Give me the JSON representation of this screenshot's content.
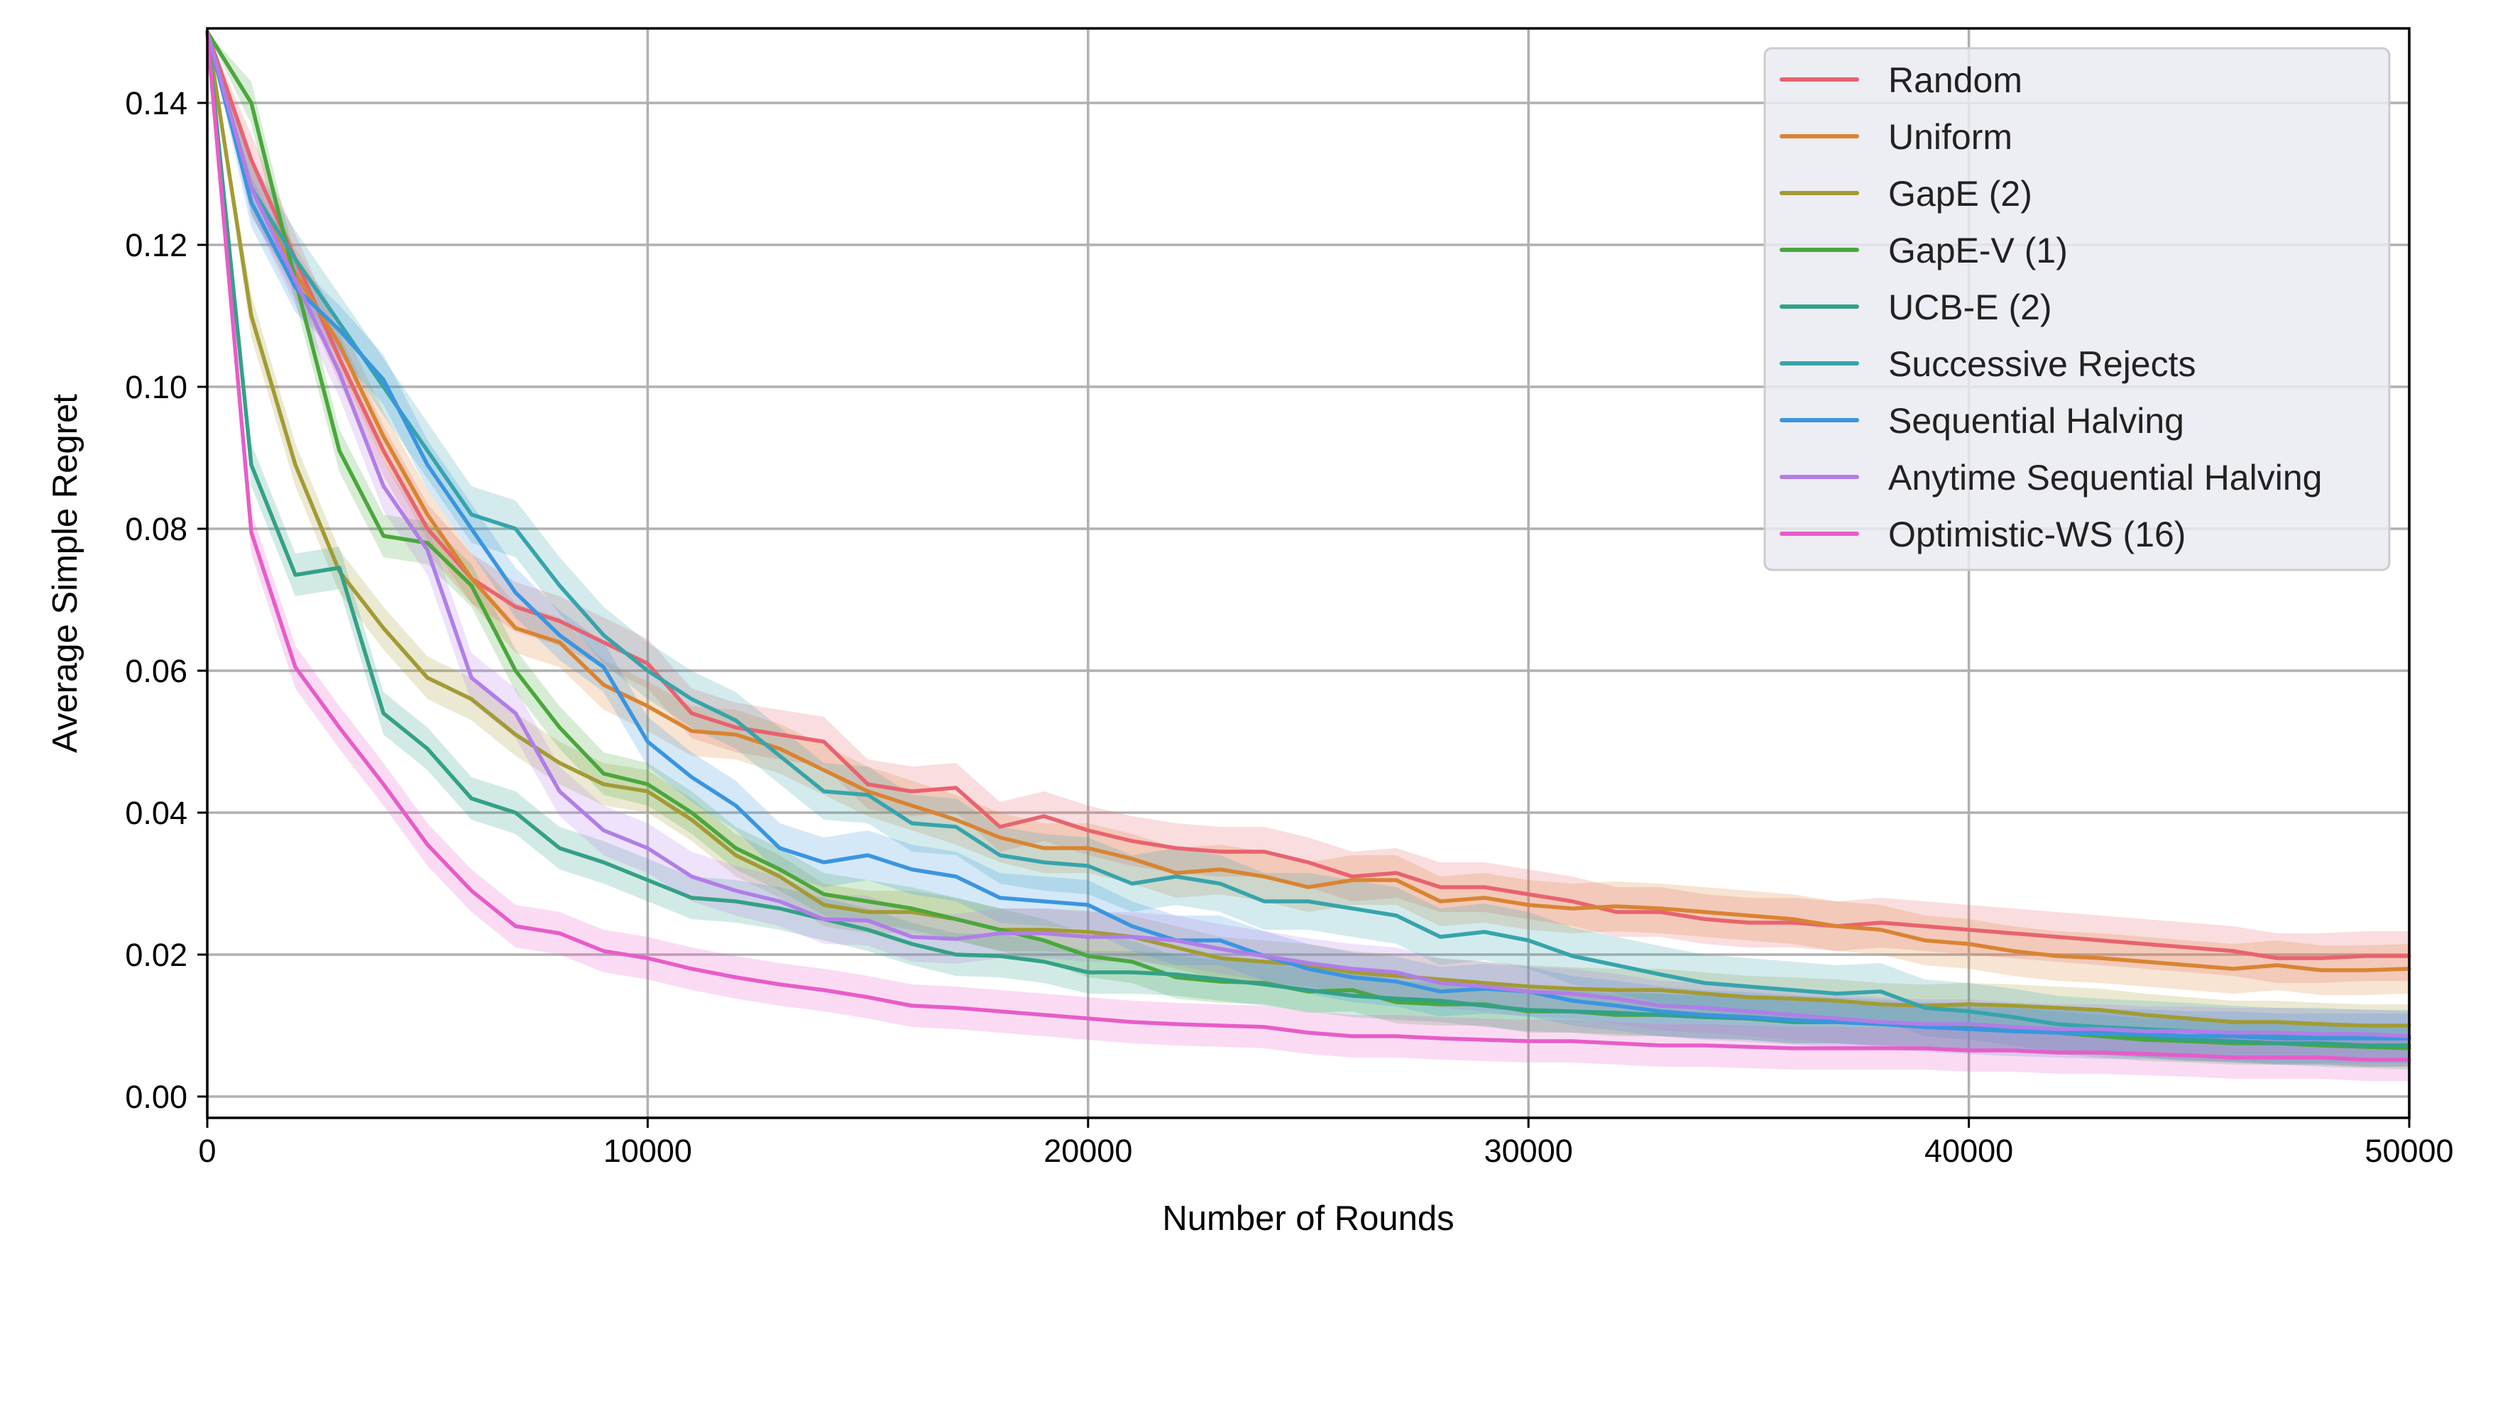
{
  "chart_data": {
    "type": "line",
    "title": "",
    "xlabel": "Number of Rounds",
    "ylabel": "Average Simple Regret",
    "xlim": [
      0,
      50000
    ],
    "ylim": [
      -0.003,
      0.1505
    ],
    "xticks": [
      0,
      10000,
      20000,
      30000,
      40000,
      50000
    ],
    "xtick_labels": [
      "0",
      "10000",
      "20000",
      "30000",
      "40000",
      "50000"
    ],
    "yticks": [
      0.0,
      0.02,
      0.04,
      0.06,
      0.08,
      0.1,
      0.12,
      0.14
    ],
    "ytick_labels": [
      "0.00",
      "0.02",
      "0.04",
      "0.06",
      "0.08",
      "0.10",
      "0.12",
      "0.14"
    ],
    "grid": true,
    "legend_position": "top-right",
    "x": [
      0,
      1000,
      2000,
      3000,
      4000,
      5000,
      6000,
      7000,
      8000,
      9000,
      10000,
      11000,
      12000,
      13000,
      14000,
      15000,
      16000,
      17000,
      18000,
      19000,
      20000,
      21000,
      22000,
      23000,
      24000,
      25000,
      26000,
      27000,
      28000,
      29000,
      30000,
      31000,
      32000,
      33000,
      34000,
      35000,
      36000,
      37000,
      38000,
      39000,
      40000,
      41000,
      42000,
      43000,
      44000,
      45000,
      46000,
      47000,
      48000,
      49000,
      50000
    ],
    "series": [
      {
        "name": "Random",
        "color": "#e8636f",
        "band": 0.0035,
        "values": [
          0.15,
          0.132,
          0.118,
          0.104,
          0.091,
          0.08,
          0.073,
          0.069,
          0.067,
          0.064,
          0.061,
          0.054,
          0.052,
          0.051,
          0.05,
          0.044,
          0.043,
          0.0435,
          0.038,
          0.0395,
          0.0375,
          0.036,
          0.035,
          0.0345,
          0.0345,
          0.033,
          0.031,
          0.0315,
          0.0295,
          0.0295,
          0.0285,
          0.0275,
          0.026,
          0.026,
          0.025,
          0.0245,
          0.0245,
          0.024,
          0.0245,
          0.024,
          0.0235,
          0.023,
          0.0225,
          0.022,
          0.0215,
          0.021,
          0.0205,
          0.0195,
          0.0195,
          0.0198,
          0.0198
        ]
      },
      {
        "name": "Uniform",
        "color": "#d98431",
        "band": 0.0035,
        "values": [
          0.15,
          0.128,
          0.116,
          0.106,
          0.093,
          0.082,
          0.073,
          0.066,
          0.064,
          0.058,
          0.055,
          0.0515,
          0.051,
          0.049,
          0.046,
          0.043,
          0.041,
          0.039,
          0.0365,
          0.035,
          0.035,
          0.0335,
          0.0315,
          0.032,
          0.031,
          0.0295,
          0.0305,
          0.0305,
          0.0275,
          0.028,
          0.027,
          0.0265,
          0.0268,
          0.0265,
          0.026,
          0.0255,
          0.025,
          0.024,
          0.0235,
          0.022,
          0.0215,
          0.0205,
          0.0198,
          0.0195,
          0.019,
          0.0185,
          0.018,
          0.0185,
          0.0178,
          0.0178,
          0.018
        ]
      },
      {
        "name": "GapE (2)",
        "color": "#a29b34",
        "band": 0.003,
        "values": [
          0.15,
          0.11,
          0.089,
          0.074,
          0.066,
          0.059,
          0.056,
          0.051,
          0.047,
          0.044,
          0.043,
          0.039,
          0.034,
          0.031,
          0.027,
          0.026,
          0.026,
          0.025,
          0.0235,
          0.0235,
          0.0232,
          0.0225,
          0.021,
          0.0195,
          0.019,
          0.0185,
          0.0175,
          0.017,
          0.0165,
          0.016,
          0.0155,
          0.0152,
          0.015,
          0.015,
          0.0145,
          0.014,
          0.0138,
          0.0135,
          0.013,
          0.0128,
          0.013,
          0.0128,
          0.0125,
          0.0122,
          0.0115,
          0.011,
          0.0105,
          0.0105,
          0.0102,
          0.01,
          0.01
        ]
      },
      {
        "name": "GapE-V (1)",
        "color": "#4aa73c",
        "band": 0.003,
        "values": [
          0.15,
          0.14,
          0.115,
          0.091,
          0.079,
          0.078,
          0.072,
          0.06,
          0.052,
          0.0455,
          0.044,
          0.04,
          0.035,
          0.032,
          0.0285,
          0.0275,
          0.0265,
          0.025,
          0.0235,
          0.022,
          0.0198,
          0.019,
          0.0168,
          0.0162,
          0.016,
          0.0148,
          0.015,
          0.0133,
          0.013,
          0.013,
          0.012,
          0.012,
          0.0115,
          0.0115,
          0.0112,
          0.011,
          0.0105,
          0.0105,
          0.0102,
          0.01,
          0.0095,
          0.0095,
          0.009,
          0.0085,
          0.008,
          0.0078,
          0.0075,
          0.0075,
          0.0072,
          0.007,
          0.0068
        ]
      },
      {
        "name": "UCB-E (2)",
        "color": "#33a187",
        "band": 0.003,
        "values": [
          0.15,
          0.089,
          0.0735,
          0.0745,
          0.054,
          0.049,
          0.042,
          0.04,
          0.035,
          0.033,
          0.0305,
          0.028,
          0.0275,
          0.0265,
          0.025,
          0.0235,
          0.0215,
          0.02,
          0.0198,
          0.019,
          0.0175,
          0.0175,
          0.0172,
          0.0165,
          0.0158,
          0.015,
          0.0142,
          0.0138,
          0.0135,
          0.0128,
          0.0122,
          0.012,
          0.0118,
          0.0115,
          0.0112,
          0.011,
          0.0105,
          0.0105,
          0.0102,
          0.01,
          0.0098,
          0.0095,
          0.0092,
          0.009,
          0.0085,
          0.008,
          0.0078,
          0.0075,
          0.0075,
          0.0072,
          0.0072
        ]
      },
      {
        "name": "Successive Rejects",
        "color": "#36a4ab",
        "band": 0.004,
        "values": [
          0.15,
          0.128,
          0.118,
          0.109,
          0.1,
          0.091,
          0.082,
          0.08,
          0.072,
          0.065,
          0.06,
          0.056,
          0.053,
          0.048,
          0.043,
          0.0425,
          0.0385,
          0.038,
          0.034,
          0.033,
          0.0325,
          0.03,
          0.031,
          0.03,
          0.0275,
          0.0275,
          0.0265,
          0.0255,
          0.0225,
          0.0232,
          0.022,
          0.0198,
          0.0185,
          0.0172,
          0.016,
          0.0155,
          0.015,
          0.0145,
          0.0148,
          0.0125,
          0.012,
          0.0112,
          0.0102,
          0.0098,
          0.0095,
          0.0092,
          0.0088,
          0.0085,
          0.0085,
          0.0082,
          0.0082
        ]
      },
      {
        "name": "Sequential Halving",
        "color": "#3a95e0",
        "band": 0.0035,
        "values": [
          0.15,
          0.126,
          0.114,
          0.108,
          0.101,
          0.089,
          0.08,
          0.071,
          0.065,
          0.0605,
          0.05,
          0.045,
          0.041,
          0.035,
          0.033,
          0.034,
          0.032,
          0.031,
          0.028,
          0.0275,
          0.027,
          0.024,
          0.022,
          0.022,
          0.0198,
          0.018,
          0.0168,
          0.0162,
          0.0148,
          0.0152,
          0.0148,
          0.0135,
          0.0128,
          0.012,
          0.0115,
          0.0112,
          0.0108,
          0.0105,
          0.0102,
          0.0098,
          0.0095,
          0.0092,
          0.009,
          0.0088,
          0.0088,
          0.0085,
          0.0085,
          0.0082,
          0.0082,
          0.0082,
          0.0082
        ]
      },
      {
        "name": "Anytime Sequential Halving",
        "color": "#b07ee8",
        "band": 0.0035,
        "values": [
          0.15,
          0.128,
          0.115,
          0.102,
          0.086,
          0.077,
          0.059,
          0.054,
          0.043,
          0.0375,
          0.035,
          0.031,
          0.029,
          0.0275,
          0.025,
          0.0248,
          0.0225,
          0.0222,
          0.023,
          0.023,
          0.0225,
          0.0225,
          0.022,
          0.0208,
          0.0198,
          0.0188,
          0.018,
          0.0175,
          0.016,
          0.0155,
          0.0148,
          0.0145,
          0.0138,
          0.0128,
          0.0125,
          0.012,
          0.0115,
          0.011,
          0.0105,
          0.0102,
          0.0102,
          0.0098,
          0.0095,
          0.0095,
          0.0092,
          0.0092,
          0.009,
          0.009,
          0.0088,
          0.0088,
          0.0085
        ]
      },
      {
        "name": "Optimistic-WS (16)",
        "color": "#e85cc9",
        "band": 0.003,
        "values": [
          0.15,
          0.0795,
          0.0605,
          0.052,
          0.044,
          0.0355,
          0.029,
          0.024,
          0.023,
          0.0205,
          0.0195,
          0.018,
          0.0168,
          0.0158,
          0.015,
          0.014,
          0.0128,
          0.0125,
          0.012,
          0.0115,
          0.011,
          0.0105,
          0.0102,
          0.01,
          0.0098,
          0.009,
          0.0085,
          0.0085,
          0.0082,
          0.008,
          0.0078,
          0.0078,
          0.0075,
          0.0072,
          0.0072,
          0.007,
          0.0068,
          0.0068,
          0.0068,
          0.0068,
          0.0065,
          0.0065,
          0.0062,
          0.0062,
          0.006,
          0.0058,
          0.0055,
          0.0055,
          0.0055,
          0.0052,
          0.0052
        ]
      }
    ]
  }
}
